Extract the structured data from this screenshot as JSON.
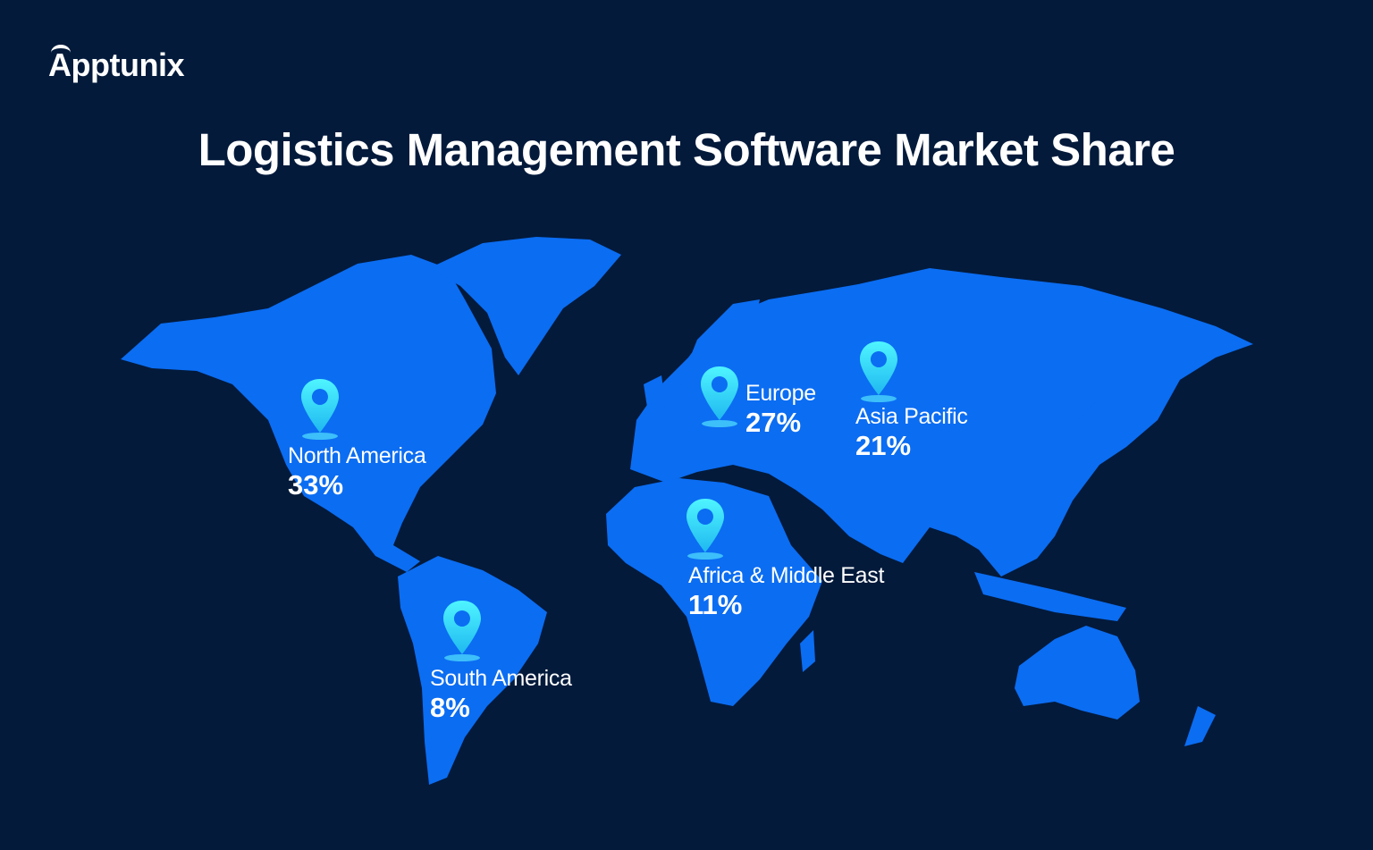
{
  "brand": {
    "logo_text": "Apptunix"
  },
  "title": "Logistics Management Software Market Share",
  "colors": {
    "background": "#031a3b",
    "land": "#0b6df2",
    "pin": "#3ff0ff",
    "text": "#ffffff"
  },
  "regions": [
    {
      "name": "North America",
      "value": "33%",
      "icon": "map-pin-icon"
    },
    {
      "name": "Europe",
      "value": "27%",
      "icon": "map-pin-icon"
    },
    {
      "name": "Asia Pacific",
      "value": "21%",
      "icon": "map-pin-icon"
    },
    {
      "name": "Africa & Middle East",
      "value": "11%",
      "icon": "map-pin-icon"
    },
    {
      "name": "South America",
      "value": "8%",
      "icon": "map-pin-icon"
    }
  ]
}
